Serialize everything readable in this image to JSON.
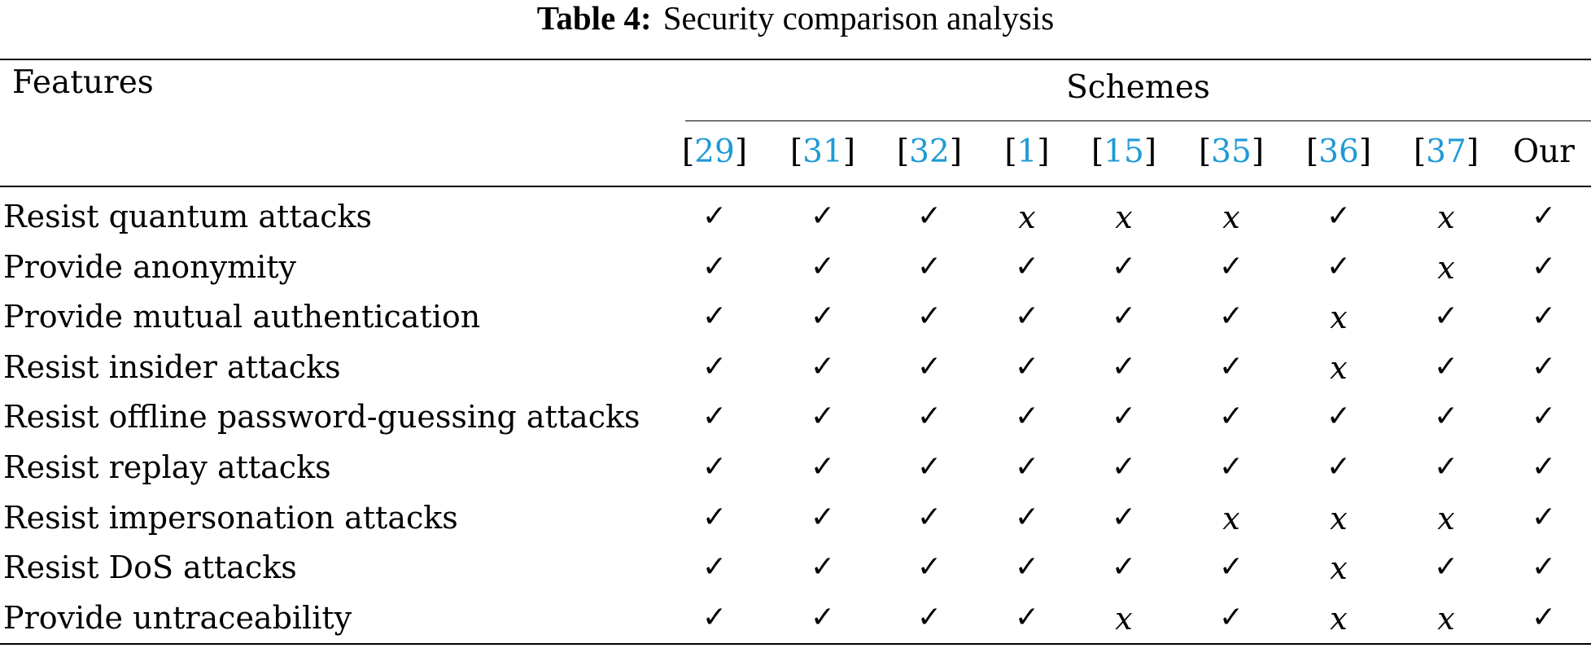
{
  "caption": {
    "label": "Table 4:",
    "title": "Security comparison analysis"
  },
  "headers": {
    "features": "Features",
    "schemes": "Schemes"
  },
  "schemes": [
    {
      "ref": "29"
    },
    {
      "ref": "31"
    },
    {
      "ref": "32"
    },
    {
      "ref": "1"
    },
    {
      "ref": "15"
    },
    {
      "ref": "35"
    },
    {
      "ref": "36"
    },
    {
      "ref": "37"
    },
    {
      "label": "Our"
    }
  ],
  "symbols": {
    "yes": "✓",
    "no": "x"
  },
  "colors": {
    "citation": "#1f9ad6"
  },
  "rows": [
    {
      "feature": "Resist quantum attacks",
      "marks": [
        true,
        true,
        true,
        false,
        false,
        false,
        true,
        false,
        true
      ]
    },
    {
      "feature": "Provide anonymity",
      "marks": [
        true,
        true,
        true,
        true,
        true,
        true,
        true,
        false,
        true
      ]
    },
    {
      "feature": "Provide mutual authentication",
      "marks": [
        true,
        true,
        true,
        true,
        true,
        true,
        false,
        true,
        true
      ]
    },
    {
      "feature": "Resist insider attacks",
      "marks": [
        true,
        true,
        true,
        true,
        true,
        true,
        false,
        true,
        true
      ]
    },
    {
      "feature": "Resist offline password-guessing attacks",
      "marks": [
        true,
        true,
        true,
        true,
        true,
        true,
        true,
        true,
        true
      ]
    },
    {
      "feature": "Resist replay attacks",
      "marks": [
        true,
        true,
        true,
        true,
        true,
        true,
        true,
        true,
        true
      ]
    },
    {
      "feature": "Resist impersonation attacks",
      "marks": [
        true,
        true,
        true,
        true,
        true,
        false,
        false,
        false,
        true
      ]
    },
    {
      "feature": "Resist DoS attacks",
      "marks": [
        true,
        true,
        true,
        true,
        true,
        true,
        false,
        true,
        true
      ]
    },
    {
      "feature": "Provide untraceability",
      "marks": [
        true,
        true,
        true,
        true,
        false,
        true,
        false,
        false,
        true
      ]
    }
  ]
}
